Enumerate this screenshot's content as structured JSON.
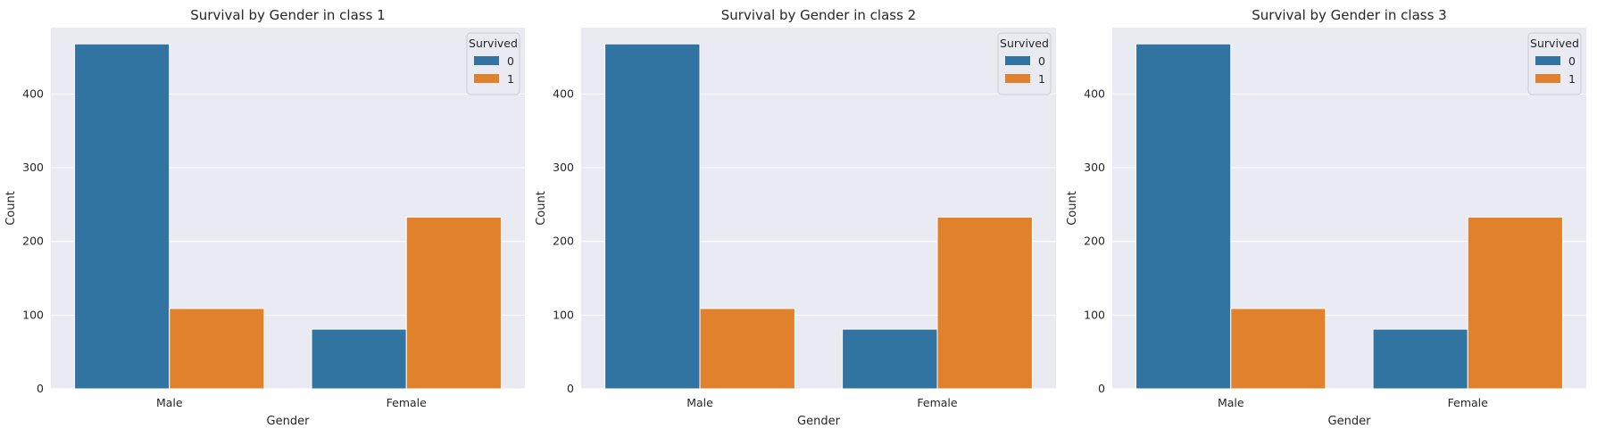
{
  "colors": {
    "survived_0": "#3274a1",
    "survived_1": "#e1812c",
    "plot_bg": "#eaeaf2",
    "grid": "#ffffff"
  },
  "chart_data": [
    {
      "type": "bar",
      "title": "Survival by Gender in class 1",
      "xlabel": "Gender",
      "ylabel": "Count",
      "categories": [
        "Male",
        "Female"
      ],
      "ylim": [
        0,
        490
      ],
      "yticks": [
        0,
        100,
        200,
        300,
        400
      ],
      "legend": {
        "title": "Survived",
        "placement": "upper-right"
      },
      "series": [
        {
          "name": "0",
          "values": [
            468,
            81
          ]
        },
        {
          "name": "1",
          "values": [
            109,
            233
          ]
        }
      ]
    },
    {
      "type": "bar",
      "title": "Survival by Gender in class 2",
      "xlabel": "Gender",
      "ylabel": "Count",
      "categories": [
        "Male",
        "Female"
      ],
      "ylim": [
        0,
        490
      ],
      "yticks": [
        0,
        100,
        200,
        300,
        400
      ],
      "legend": {
        "title": "Survived",
        "placement": "upper-right"
      },
      "series": [
        {
          "name": "0",
          "values": [
            468,
            81
          ]
        },
        {
          "name": "1",
          "values": [
            109,
            233
          ]
        }
      ]
    },
    {
      "type": "bar",
      "title": "Survival by Gender in class 3",
      "xlabel": "Gender",
      "ylabel": "Count",
      "categories": [
        "Male",
        "Female"
      ],
      "ylim": [
        0,
        490
      ],
      "yticks": [
        0,
        100,
        200,
        300,
        400
      ],
      "legend": {
        "title": "Survived",
        "placement": "upper-right"
      },
      "series": [
        {
          "name": "0",
          "values": [
            468,
            81
          ]
        },
        {
          "name": "1",
          "values": [
            109,
            233
          ]
        }
      ]
    }
  ]
}
